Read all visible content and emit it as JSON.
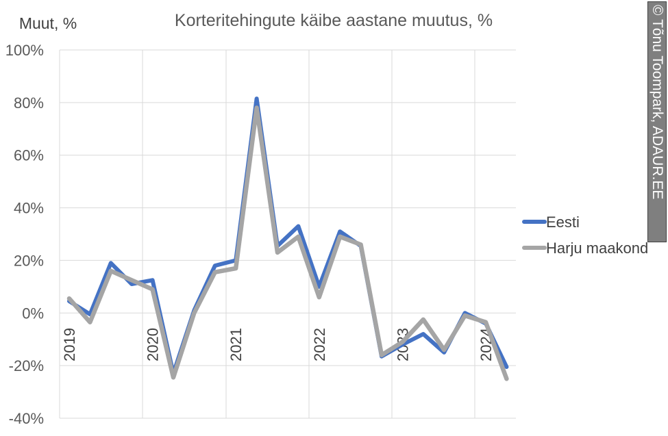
{
  "chart_data": {
    "type": "line",
    "title": "Korteritehingute käibe aastane muutus, %",
    "ylabel": "Muut, %",
    "xlabel": "",
    "ylim": [
      -40,
      100
    ],
    "yticks": [
      -40,
      -20,
      0,
      20,
      40,
      60,
      80,
      100
    ],
    "ytick_labels": [
      "-40%",
      "-20%",
      "0%",
      "20%",
      "40%",
      "60%",
      "80%",
      "100%"
    ],
    "x_year_labels": [
      "2019",
      "2020",
      "2021",
      "2022",
      "2023",
      "2024"
    ],
    "x_quarters": [
      "2019 Q1",
      "2019 Q2",
      "2019 Q3",
      "2019 Q4",
      "2020 Q1",
      "2020 Q2",
      "2020 Q3",
      "2020 Q4",
      "2021 Q1",
      "2021 Q2",
      "2021 Q3",
      "2021 Q4",
      "2022 Q1",
      "2022 Q2",
      "2022 Q3",
      "2022 Q4",
      "2023 Q1",
      "2023 Q2",
      "2023 Q3",
      "2023 Q4",
      "2024 Q1",
      "2024 Q2"
    ],
    "grid": true,
    "legend_position": "right",
    "series": [
      {
        "name": "Eesti",
        "color": "#4472c4",
        "values": [
          4.5,
          -0.5,
          19,
          11,
          12.5,
          -23,
          1,
          18,
          20,
          81.5,
          25.5,
          33,
          10,
          31,
          25.5,
          -16.5,
          -12,
          -8,
          -15,
          0,
          -4,
          -20.5
        ]
      },
      {
        "name": "Harju maakond",
        "color": "#a5a5a5",
        "values": [
          5.5,
          -3.5,
          16,
          12.5,
          9,
          -24.5,
          0,
          15.5,
          17,
          78,
          23,
          29,
          6,
          29,
          26,
          -16,
          -11,
          -2.5,
          -14,
          -1,
          -3.5,
          -25
        ]
      }
    ]
  },
  "watermark": {
    "symbol": "©",
    "text": "Tõnu Toompark, ADAUR.EE"
  }
}
